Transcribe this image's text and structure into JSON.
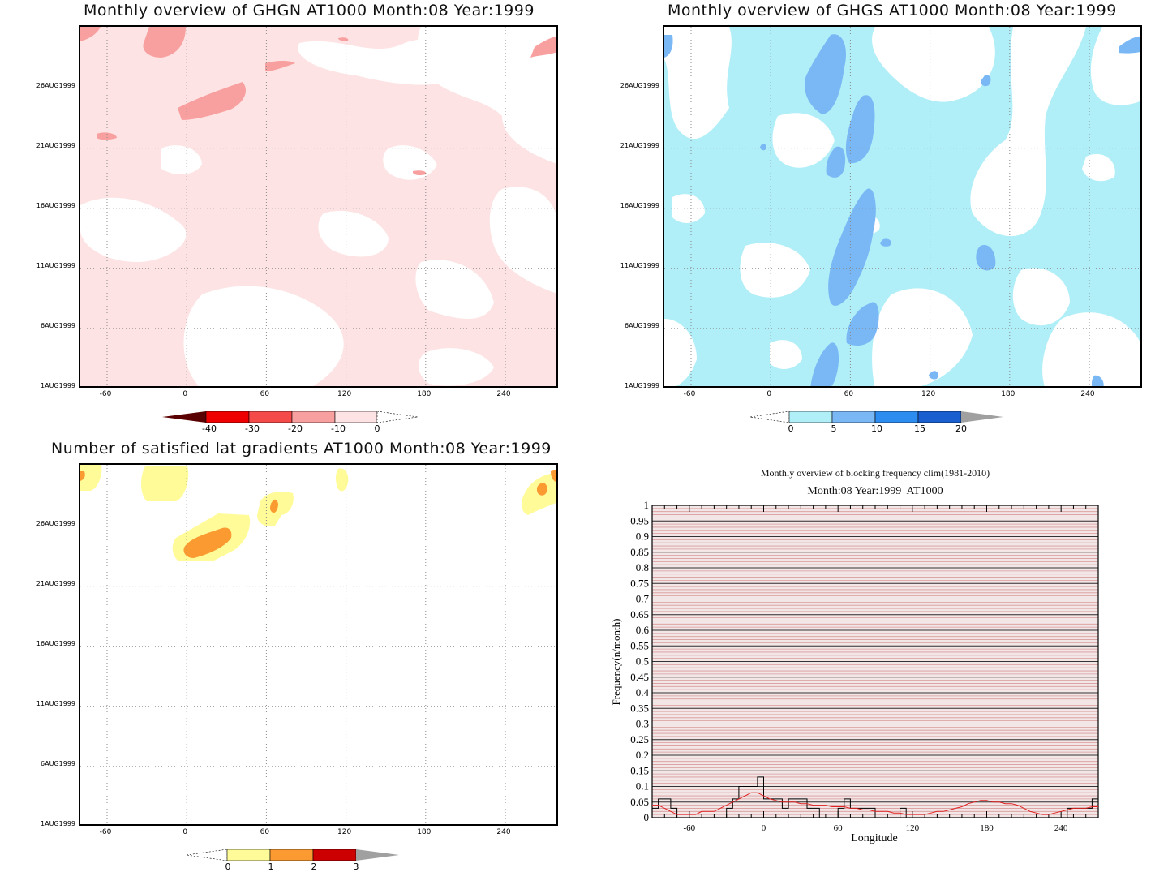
{
  "chart_data": [
    {
      "type": "heatmap",
      "title": "Monthly overview of GHGN AT1000 Month:08 Year:1999",
      "x_ticks": [
        "-60",
        "0",
        "60",
        "120",
        "180",
        "240"
      ],
      "y_ticks": [
        "1AUG1999",
        "6AUG1999",
        "11AUG1999",
        "16AUG1999",
        "21AUG1999",
        "26AUG1999"
      ],
      "colorbar": {
        "labels": [
          "-40",
          "-30",
          "-20",
          "-10",
          "0"
        ],
        "colors": [
          "#5a0000",
          "#ee0000",
          "#f44a4a",
          "#f8a0a0",
          "#fde3e3"
        ]
      },
      "colors": {
        "light": "#fde3e3",
        "mid": "#f8a0a0"
      }
    },
    {
      "type": "heatmap",
      "title": "Monthly overview of GHGS AT1000 Month:08 Year:1999",
      "x_ticks": [
        "-60",
        "0",
        "60",
        "120",
        "180",
        "240"
      ],
      "y_ticks": [
        "1AUG1999",
        "6AUG1999",
        "11AUG1999",
        "16AUG1999",
        "21AUG1999",
        "26AUG1999"
      ],
      "colorbar": {
        "labels": [
          "0",
          "5",
          "10",
          "15",
          "20"
        ],
        "colors": [
          "#b0eef8",
          "#7ab8f5",
          "#2d8cf0",
          "#1a5fd0",
          "#a0a0a0"
        ]
      },
      "colors": {
        "light": "#b0eef8",
        "mid": "#7ab8f5"
      }
    },
    {
      "type": "heatmap",
      "title": "Number of satisfied lat gradients AT1000 Month:08 Year:1999",
      "x_ticks": [
        "-60",
        "0",
        "60",
        "120",
        "180",
        "240"
      ],
      "y_ticks": [
        "1AUG1999",
        "6AUG1999",
        "11AUG1999",
        "16AUG1999",
        "21AUG1999",
        "26AUG1999"
      ],
      "colorbar": {
        "labels": [
          "0",
          "1",
          "2",
          "3"
        ],
        "colors": [
          "#fffb99",
          "#fa9a30",
          "#cc0000",
          "#a0a0a0"
        ]
      },
      "colors": {
        "light": "#fffb99",
        "mid": "#fa9a30",
        "dark": "#e55010"
      }
    },
    {
      "type": "line",
      "title": "Monthly overview of blocking frequency clim(1981-2010)",
      "subtitle": "Month:08 Year:1999  AT1000",
      "xlabel": "Longitude",
      "ylabel": "Frequency(n/month)",
      "xlim": [
        -90,
        270
      ],
      "ylim": [
        0,
        1
      ],
      "x_ticks": [
        "-60",
        "0",
        "60",
        "120",
        "180",
        "240"
      ],
      "y_ticks": [
        "0",
        "0.05",
        "0.1",
        "0.15",
        "0.2",
        "0.25",
        "0.3",
        "0.35",
        "0.4",
        "0.45",
        "0.5",
        "0.55",
        "0.6",
        "0.65",
        "0.7",
        "0.75",
        "0.8",
        "0.85",
        "0.9",
        "0.95",
        "1"
      ],
      "series": [
        {
          "color": "#000000",
          "x": [
            -90,
            -85,
            -80,
            -75,
            -70,
            -65,
            -60,
            -55,
            -50,
            -45,
            -40,
            -35,
            -30,
            -25,
            -20,
            -15,
            -10,
            -5,
            0,
            5,
            10,
            15,
            20,
            25,
            30,
            35,
            40,
            45,
            50,
            55,
            60,
            65,
            70,
            75,
            80,
            85,
            90,
            95,
            100,
            105,
            110,
            115,
            120,
            125,
            130,
            135,
            140,
            145,
            150,
            155,
            160,
            165,
            170,
            175,
            180,
            185,
            190,
            195,
            200,
            205,
            210,
            215,
            220,
            225,
            230,
            235,
            240,
            245,
            250,
            255,
            260,
            265,
            270
          ],
          "values": [
            0.03,
            0.06,
            0.06,
            0.03,
            0.0,
            0.0,
            0.0,
            0.0,
            0.0,
            0.0,
            0.0,
            0.0,
            0.03,
            0.06,
            0.1,
            0.1,
            0.1,
            0.13,
            0.06,
            0.06,
            0.06,
            0.03,
            0.06,
            0.06,
            0.06,
            0.03,
            0.03,
            0.0,
            0.0,
            0.0,
            0.03,
            0.06,
            0.03,
            0.03,
            0.03,
            0.03,
            0.0,
            0.0,
            0.0,
            0.0,
            0.03,
            0.0,
            0.0,
            0.0,
            0.0,
            0.0,
            0.0,
            0.0,
            0.0,
            0.0,
            0.0,
            0.0,
            0.0,
            0.0,
            0.0,
            0.0,
            0.0,
            0.0,
            0.0,
            0.0,
            0.0,
            0.0,
            0.0,
            0.0,
            0.0,
            0.0,
            0.0,
            0.03,
            0.03,
            0.03,
            0.03,
            0.06,
            0.03
          ]
        },
        {
          "color": "#e02020",
          "x": [
            -90,
            -85,
            -80,
            -75,
            -70,
            -65,
            -60,
            -55,
            -50,
            -45,
            -40,
            -35,
            -30,
            -25,
            -20,
            -15,
            -10,
            -5,
            0,
            5,
            10,
            15,
            20,
            25,
            30,
            35,
            40,
            45,
            50,
            55,
            60,
            65,
            70,
            75,
            80,
            85,
            90,
            95,
            100,
            105,
            110,
            115,
            120,
            125,
            130,
            135,
            140,
            145,
            150,
            155,
            160,
            165,
            170,
            175,
            180,
            185,
            190,
            195,
            200,
            205,
            210,
            215,
            220,
            225,
            230,
            235,
            240,
            245,
            250,
            255,
            260,
            265,
            270
          ],
          "values": [
            0.04,
            0.04,
            0.03,
            0.02,
            0.01,
            0.01,
            0.01,
            0.01,
            0.02,
            0.02,
            0.02,
            0.03,
            0.04,
            0.05,
            0.06,
            0.07,
            0.08,
            0.08,
            0.07,
            0.06,
            0.055,
            0.05,
            0.05,
            0.05,
            0.045,
            0.045,
            0.04,
            0.04,
            0.04,
            0.035,
            0.035,
            0.035,
            0.03,
            0.03,
            0.025,
            0.025,
            0.02,
            0.02,
            0.02,
            0.015,
            0.015,
            0.01,
            0.01,
            0.01,
            0.01,
            0.015,
            0.02,
            0.02,
            0.025,
            0.03,
            0.035,
            0.045,
            0.05,
            0.055,
            0.055,
            0.05,
            0.05,
            0.045,
            0.045,
            0.04,
            0.03,
            0.02,
            0.015,
            0.01,
            0.01,
            0.015,
            0.02,
            0.025,
            0.03,
            0.03,
            0.03,
            0.035,
            0.035
          ]
        }
      ]
    }
  ]
}
